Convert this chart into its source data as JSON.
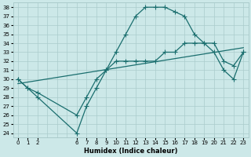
{
  "xlabel": "Humidex (Indice chaleur)",
  "bg_color": "#cce8e8",
  "grid_color": "#aacccc",
  "line_color": "#1a6e6e",
  "xlim": [
    -0.5,
    23.5
  ],
  "ylim": [
    23.5,
    38.5
  ],
  "xtick_positions": [
    0,
    1,
    2,
    6,
    7,
    8,
    9,
    10,
    11,
    12,
    13,
    14,
    15,
    16,
    17,
    18,
    19,
    20,
    21,
    22,
    23
  ],
  "xtick_labels": [
    "0",
    "1",
    "2",
    "6",
    "7",
    "8",
    "9",
    "10",
    "11",
    "12",
    "13",
    "14",
    "15",
    "16",
    "17",
    "18",
    "19",
    "20",
    "21",
    "22",
    "23"
  ],
  "yticks": [
    24,
    25,
    26,
    27,
    28,
    29,
    30,
    31,
    32,
    33,
    34,
    35,
    36,
    37,
    38
  ],
  "line1_x": [
    0,
    1,
    2,
    6,
    7,
    8,
    9,
    10,
    11,
    12,
    13,
    14,
    15,
    16,
    17,
    18,
    19,
    20,
    21,
    22,
    23
  ],
  "line1_y": [
    30,
    29,
    28,
    24,
    27,
    29,
    31,
    33,
    35,
    37,
    38,
    38,
    38,
    37.5,
    37,
    35,
    34,
    33,
    31,
    30,
    33
  ],
  "line2_x": [
    0,
    1,
    2,
    6,
    7,
    8,
    9,
    10,
    11,
    12,
    13,
    14,
    15,
    16,
    17,
    18,
    19,
    20,
    21,
    22,
    23
  ],
  "line2_y": [
    30,
    29,
    28.5,
    26,
    28,
    30,
    31,
    32,
    32,
    32,
    32,
    32,
    33,
    33,
    34,
    34,
    34,
    34,
    32,
    31.5,
    33
  ],
  "line3_x": [
    0,
    23
  ],
  "line3_y": [
    29.5,
    33.5
  ],
  "marker_style": "+",
  "marker_size": 4,
  "line_width": 0.9
}
